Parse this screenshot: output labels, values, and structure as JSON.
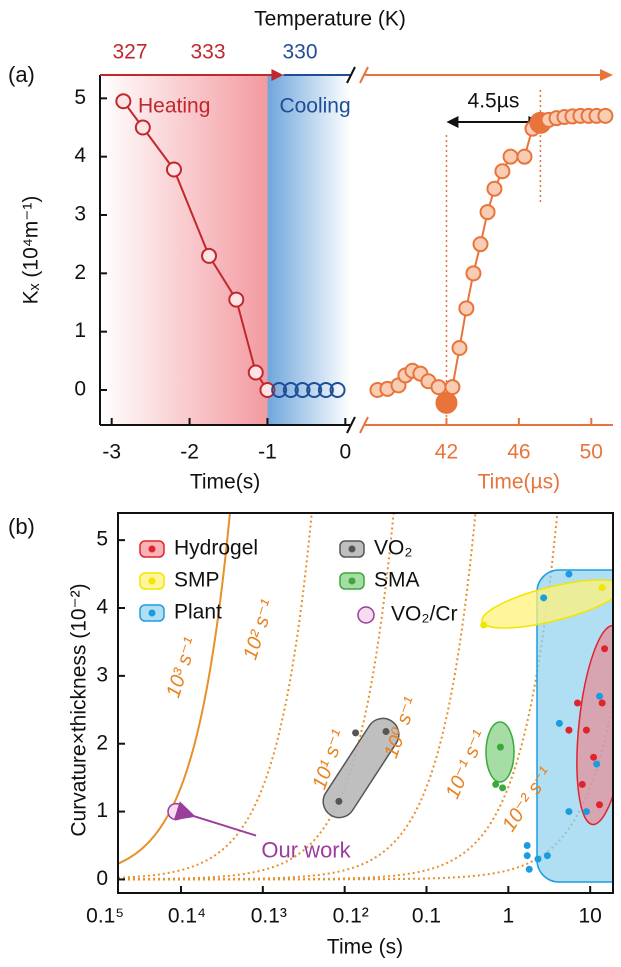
{
  "chart_data": [
    {
      "type": "line",
      "panel_label": "(a)",
      "top_axis_label": "Temperature (K)",
      "temperature_ticks": [
        327,
        333,
        330
      ],
      "y_label": "Kₓ (10⁴m⁻¹)",
      "ylim": [
        -0.6,
        5.4
      ],
      "yticks": [
        0,
        1,
        2,
        3,
        4,
        5
      ],
      "x_label": "Time(s)",
      "xlim": [
        -3.15,
        0.06
      ],
      "xticks": [
        -3,
        -2,
        -1,
        0
      ],
      "x2_label": "Time(µs)",
      "x2lim": [
        37.5,
        51.2
      ],
      "x2ticks": [
        42,
        46,
        50
      ],
      "annotations": {
        "delay": "4.5µs"
      },
      "series": [
        {
          "name": "Heating",
          "color": "#c0282d",
          "x": [
            -2.85,
            -2.6,
            -2.2,
            -1.75,
            -1.4,
            -1.15,
            -1.0
          ],
          "values": [
            4.95,
            4.5,
            3.78,
            2.3,
            1.55,
            0.3,
            0
          ]
        },
        {
          "name": "Cooling",
          "color": "#1f4e96",
          "x": [
            -0.85,
            -0.7,
            -0.55,
            -0.4,
            -0.25,
            -0.1
          ],
          "values": [
            0,
            0,
            0,
            0,
            0,
            0
          ]
        },
        {
          "color": "#e8743b",
          "axis": "x2",
          "highlighted": [
            8,
            20
          ],
          "x": [
            38.19,
            38.74,
            39.35,
            39.73,
            40.12,
            40.56,
            41.0,
            41.56,
            42.0,
            42.33,
            42.72,
            43.1,
            43.49,
            43.88,
            44.27,
            44.65,
            45.09,
            45.54,
            46.31,
            46.75,
            47.19,
            47.64,
            48.08,
            48.52,
            48.96,
            49.4,
            49.85,
            50.29,
            50.78
          ],
          "values": [
            0,
            0.02,
            0.08,
            0.25,
            0.33,
            0.28,
            0.15,
            0.05,
            -0.22,
            0.05,
            0.72,
            1.4,
            2.0,
            2.5,
            3.05,
            3.45,
            3.75,
            4.0,
            4.0,
            4.48,
            4.58,
            4.63,
            4.66,
            4.68,
            4.69,
            4.7,
            4.7,
            4.7,
            4.7
          ]
        }
      ]
    },
    {
      "type": "scatter",
      "panel_label": "(b)",
      "y_label": "Curvature×thickness (10⁻²)",
      "x_label": "Time (s)",
      "log_x": true,
      "xlim": [
        1.7e-05,
        19
      ],
      "xticks": [
        {
          "value": 1e-05,
          "label": "0.1⁵"
        },
        {
          "value": 0.0001,
          "label": "0.1⁴"
        },
        {
          "value": 0.001,
          "label": "0.1³"
        },
        {
          "value": 0.01,
          "label": "0.1²"
        },
        0.1,
        1,
        10
      ],
      "ylim": [
        -0.2,
        5.4
      ],
      "yticks": [
        0,
        1,
        2,
        3,
        4,
        5
      ],
      "rate_labels": [
        "10³ s⁻¹",
        "10² s⁻¹",
        "10¹ s⁻¹",
        "10⁰ s⁻¹",
        "10⁻¹ s⁻¹",
        "10⁻² s⁻¹"
      ],
      "annotation": "Our work",
      "series": [
        {
          "name": "Hydrogel",
          "color": "#e0242c",
          "x": [
            15,
            7,
            14,
            5.5,
            9,
            11,
            8,
            13
          ],
          "values": [
            3.4,
            2.6,
            2.6,
            2.2,
            2.2,
            1.8,
            1.4,
            1.1
          ]
        },
        {
          "name": "SMP",
          "color": "#f2e600",
          "x": [
            0.5,
            14
          ],
          "values": [
            3.75,
            4.3
          ]
        },
        {
          "name": "Plant",
          "color": "#1a9de0",
          "x": [
            5.5,
            2.7,
            1.7,
            1.7,
            2.3,
            3,
            1.8,
            5.5,
            9,
            4.2,
            13,
            12
          ],
          "values": [
            4.5,
            4.15,
            0.5,
            0.35,
            0.3,
            0.35,
            0.15,
            1.0,
            1.0,
            2.3,
            2.7,
            1.7
          ]
        },
        {
          "name": "VO₂",
          "color": "#555555",
          "x": [
            0.0085,
            0.0136,
            0.032
          ],
          "values": [
            1.15,
            2.16,
            2.18
          ]
        },
        {
          "name": "SMA",
          "color": "#3aaa3a",
          "x": [
            0.8,
            0.7,
            0.85
          ],
          "values": [
            1.95,
            1.4,
            1.35
          ]
        },
        {
          "name": "VO₂/Cr",
          "color": "#9b3d9b",
          "marker": "open",
          "x": [
            8.7e-05
          ],
          "values": [
            1.0
          ]
        }
      ]
    }
  ]
}
